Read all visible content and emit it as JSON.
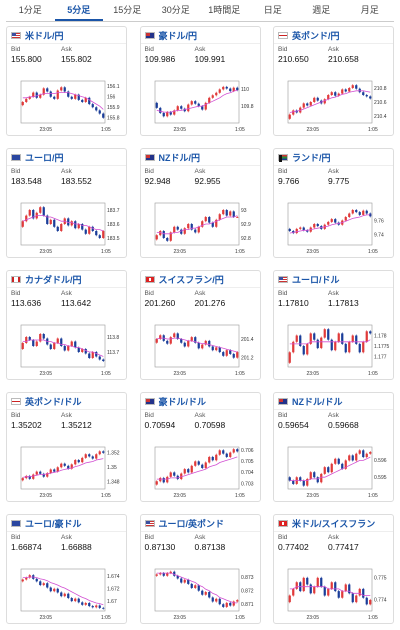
{
  "tabs": [
    {
      "label": "1分足",
      "active": false
    },
    {
      "label": "5分足",
      "active": true
    },
    {
      "label": "15分足",
      "active": false
    },
    {
      "label": "30分足",
      "active": false
    },
    {
      "label": "1時間足",
      "active": false
    },
    {
      "label": "日足",
      "active": false
    },
    {
      "label": "週足",
      "active": false
    },
    {
      "label": "月足",
      "active": false
    }
  ],
  "labels": {
    "bid": "Bid",
    "ask": "Ask"
  },
  "colors": {
    "up": "#e03a3a",
    "down": "#1a3d99",
    "ma": "#d24fd2",
    "axis": "#666"
  },
  "chart_data": [
    {
      "pair": "米ドル/円",
      "flag": "us",
      "bid": "155.800",
      "ask": "155.802",
      "type": "candlestick",
      "x_labels": [
        "23:05",
        "1:05"
      ],
      "y_ticks": [
        "156.1",
        "156",
        "155.9",
        "155.8"
      ],
      "ylim": [
        155.75,
        156.15
      ],
      "close": [
        155.95,
        155.98,
        156.0,
        156.04,
        155.99,
        156.02,
        156.08,
        156.05,
        156.0,
        155.98,
        156.06,
        156.09,
        156.05,
        156.0,
        155.98,
        156.02,
        155.97,
        155.95,
        155.99,
        155.93,
        155.9,
        155.87,
        155.84,
        155.8
      ],
      "ma": [
        155.99,
        155.99,
        156.0,
        156.0,
        156.01,
        156.02,
        156.03,
        156.03,
        156.03,
        156.03,
        156.04,
        156.04,
        156.04,
        156.04,
        156.03,
        156.02,
        156.01,
        156.0,
        155.99,
        155.97,
        155.95,
        155.93,
        155.91,
        155.88
      ]
    },
    {
      "pair": "豪ドル/円",
      "flag": "au",
      "bid": "109.986",
      "ask": "109.991",
      "type": "candlestick",
      "x_labels": [
        "23:05",
        "1:05"
      ],
      "y_ticks": [
        "110",
        "109.8"
      ],
      "ylim": [
        109.6,
        110.1
      ],
      "close": [
        109.78,
        109.72,
        109.68,
        109.73,
        109.7,
        109.75,
        109.8,
        109.77,
        109.74,
        109.82,
        109.86,
        109.83,
        109.8,
        109.76,
        109.84,
        109.9,
        109.93,
        109.96,
        110.0,
        110.03,
        110.01,
        109.98,
        110.02,
        109.99
      ],
      "ma": [
        109.75,
        109.74,
        109.73,
        109.73,
        109.73,
        109.74,
        109.75,
        109.75,
        109.76,
        109.77,
        109.78,
        109.79,
        109.8,
        109.8,
        109.82,
        109.84,
        109.86,
        109.88,
        109.9,
        109.93,
        109.95,
        109.96,
        109.98,
        109.99
      ]
    },
    {
      "pair": "英ポンド/円",
      "flag": "gb",
      "bid": "210.650",
      "ask": "210.658",
      "type": "candlestick",
      "x_labels": [
        "23:05",
        "1:05"
      ],
      "y_ticks": [
        "210.8",
        "210.6",
        "210.4"
      ],
      "ylim": [
        210.3,
        210.9
      ],
      "close": [
        210.42,
        210.48,
        210.45,
        210.52,
        210.58,
        210.55,
        210.6,
        210.66,
        210.62,
        210.58,
        210.64,
        210.7,
        210.74,
        210.69,
        210.72,
        210.78,
        210.75,
        210.8,
        210.84,
        210.79,
        210.74,
        210.7,
        210.68,
        210.65
      ],
      "ma": [
        210.45,
        210.46,
        210.47,
        210.48,
        210.5,
        210.52,
        210.54,
        210.56,
        210.58,
        210.6,
        210.62,
        210.64,
        210.66,
        210.67,
        210.69,
        210.71,
        210.72,
        210.74,
        210.75,
        210.76,
        210.76,
        210.76,
        210.75,
        210.74
      ]
    },
    {
      "pair": "ユーロ/円",
      "flag": "eu",
      "bid": "183.548",
      "ask": "183.552",
      "type": "candlestick",
      "x_labels": [
        "23:05",
        "1:05"
      ],
      "y_ticks": [
        "183.7",
        "183.6",
        "183.5"
      ],
      "ylim": [
        183.45,
        183.75
      ],
      "close": [
        183.62,
        183.66,
        183.7,
        183.64,
        183.68,
        183.72,
        183.66,
        183.6,
        183.63,
        183.58,
        183.55,
        183.6,
        183.64,
        183.59,
        183.62,
        183.57,
        183.6,
        183.56,
        183.53,
        183.58,
        183.55,
        183.52,
        183.5,
        183.55
      ],
      "ma": [
        183.62,
        183.63,
        183.64,
        183.65,
        183.66,
        183.66,
        183.66,
        183.65,
        183.65,
        183.64,
        183.63,
        183.62,
        183.62,
        183.61,
        183.61,
        183.6,
        183.6,
        183.59,
        183.59,
        183.58,
        183.57,
        183.56,
        183.56,
        183.55
      ]
    },
    {
      "pair": "NZドル/円",
      "flag": "nz",
      "bid": "92.948",
      "ask": "92.955",
      "type": "candlestick",
      "x_labels": [
        "23:05",
        "1:05"
      ],
      "y_ticks": [
        "93",
        "92.9",
        "92.8"
      ],
      "ylim": [
        92.75,
        93.05
      ],
      "close": [
        92.82,
        92.85,
        92.8,
        92.78,
        92.84,
        92.88,
        92.86,
        92.83,
        92.87,
        92.9,
        92.86,
        92.84,
        92.88,
        92.92,
        92.95,
        92.91,
        92.88,
        92.93,
        92.97,
        93.0,
        92.96,
        92.99,
        92.95,
        92.95
      ],
      "ma": [
        92.84,
        92.84,
        92.83,
        92.83,
        92.83,
        92.84,
        92.84,
        92.85,
        92.86,
        92.86,
        92.87,
        92.87,
        92.88,
        92.89,
        92.9,
        92.9,
        92.91,
        92.92,
        92.93,
        92.94,
        92.95,
        92.95,
        92.95,
        92.96
      ]
    },
    {
      "pair": "ランド/円",
      "flag": "za",
      "bid": "9.766",
      "ask": "9.775",
      "type": "candlestick",
      "x_labels": [
        "23:05",
        "1:05"
      ],
      "y_ticks": [
        "9.76",
        "9.74"
      ],
      "ylim": [
        9.725,
        9.785
      ],
      "close": [
        9.745,
        9.742,
        9.748,
        9.75,
        9.746,
        9.744,
        9.75,
        9.755,
        9.752,
        9.748,
        9.754,
        9.758,
        9.762,
        9.757,
        9.754,
        9.76,
        9.765,
        9.77,
        9.775,
        9.772,
        9.768,
        9.774,
        9.77,
        9.766
      ],
      "ma": [
        9.742,
        9.743,
        9.744,
        9.745,
        9.746,
        9.746,
        9.747,
        9.748,
        9.749,
        9.75,
        9.751,
        9.752,
        9.754,
        9.755,
        9.756,
        9.757,
        9.759,
        9.761,
        9.763,
        9.764,
        9.765,
        9.767,
        9.768,
        9.768
      ]
    },
    {
      "pair": "カナダドル/円",
      "flag": "ca",
      "bid": "113.636",
      "ask": "113.642",
      "type": "candlestick",
      "x_labels": [
        "23:05",
        "1:05"
      ],
      "y_ticks": [
        "113.8",
        "113.7"
      ],
      "ylim": [
        113.6,
        113.88
      ],
      "close": [
        113.76,
        113.8,
        113.78,
        113.74,
        113.77,
        113.82,
        113.79,
        113.75,
        113.72,
        113.76,
        113.79,
        113.74,
        113.71,
        113.74,
        113.77,
        113.73,
        113.7,
        113.72,
        113.69,
        113.66,
        113.7,
        113.67,
        113.65,
        113.64
      ],
      "ma": [
        113.77,
        113.77,
        113.78,
        113.78,
        113.78,
        113.78,
        113.78,
        113.77,
        113.77,
        113.76,
        113.76,
        113.75,
        113.75,
        113.74,
        113.74,
        113.73,
        113.73,
        113.72,
        113.71,
        113.7,
        113.7,
        113.69,
        113.68,
        113.67
      ]
    },
    {
      "pair": "スイスフラン/円",
      "flag": "ch",
      "bid": "201.260",
      "ask": "201.276",
      "type": "candlestick",
      "x_labels": [
        "23:05",
        "1:05"
      ],
      "y_ticks": [
        "201.4",
        "201.2"
      ],
      "ylim": [
        201.1,
        201.55
      ],
      "close": [
        201.4,
        201.44,
        201.38,
        201.35,
        201.42,
        201.46,
        201.4,
        201.36,
        201.32,
        201.38,
        201.42,
        201.36,
        201.3,
        201.34,
        201.38,
        201.32,
        201.28,
        201.31,
        201.26,
        201.22,
        201.28,
        201.24,
        201.2,
        201.26
      ],
      "ma": [
        201.4,
        201.41,
        201.41,
        201.4,
        201.4,
        201.41,
        201.41,
        201.4,
        201.39,
        201.38,
        201.38,
        201.37,
        201.36,
        201.35,
        201.35,
        201.34,
        201.33,
        201.32,
        201.31,
        201.3,
        201.29,
        201.28,
        201.27,
        201.26
      ]
    },
    {
      "pair": "ユーロ/ドル",
      "flag": "us",
      "bid": "1.17810",
      "ask": "1.17813",
      "type": "candlestick",
      "x_labels": [
        "23:05",
        "1:05"
      ],
      "y_ticks": [
        "1.178",
        "1.1775",
        "1.177"
      ],
      "ylim": [
        1.1765,
        1.1785
      ],
      "close": [
        1.1772,
        1.1777,
        1.178,
        1.1775,
        1.1771,
        1.1776,
        1.1781,
        1.1778,
        1.1774,
        1.1779,
        1.1783,
        1.1778,
        1.1773,
        1.1777,
        1.1781,
        1.1776,
        1.1772,
        1.1777,
        1.178,
        1.1776,
        1.1772,
        1.1777,
        1.1782,
        1.1781
      ],
      "ma": [
        1.1776,
        1.1776,
        1.1776,
        1.1776,
        1.1776,
        1.1776,
        1.1777,
        1.1777,
        1.1777,
        1.1777,
        1.1777,
        1.1777,
        1.1777,
        1.1777,
        1.1777,
        1.1777,
        1.1777,
        1.1777,
        1.1777,
        1.1777,
        1.1777,
        1.1777,
        1.1777,
        1.1778
      ]
    },
    {
      "pair": "英ポンド/ドル",
      "flag": "gb",
      "bid": "1.35202",
      "ask": "1.35212",
      "type": "candlestick",
      "x_labels": [
        "23:05",
        "1:05"
      ],
      "y_ticks": [
        "1.352",
        "1.35",
        "1.348"
      ],
      "ylim": [
        1.347,
        1.3528
      ],
      "close": [
        1.3485,
        1.3488,
        1.3484,
        1.349,
        1.3494,
        1.3491,
        1.3487,
        1.3492,
        1.3497,
        1.3494,
        1.35,
        1.3505,
        1.3502,
        1.3498,
        1.3504,
        1.351,
        1.3507,
        1.3513,
        1.3518,
        1.3515,
        1.3512,
        1.3518,
        1.3522,
        1.352
      ],
      "ma": [
        1.3486,
        1.3487,
        1.3487,
        1.3488,
        1.3489,
        1.349,
        1.349,
        1.3491,
        1.3492,
        1.3493,
        1.3494,
        1.3496,
        1.3497,
        1.3498,
        1.3499,
        1.3501,
        1.3502,
        1.3504,
        1.3506,
        1.3507,
        1.3508,
        1.351,
        1.3511,
        1.3512
      ]
    },
    {
      "pair": "豪ドル/ドル",
      "flag": "au",
      "bid": "0.70594",
      "ask": "0.70598",
      "type": "candlestick",
      "x_labels": [
        "23:05",
        "1:05"
      ],
      "y_ticks": [
        "0.706",
        "0.705",
        "0.704",
        "0.703"
      ],
      "ylim": [
        0.7025,
        0.7063
      ],
      "close": [
        0.7032,
        0.7035,
        0.7031,
        0.7036,
        0.704,
        0.7037,
        0.7034,
        0.7039,
        0.7043,
        0.704,
        0.7046,
        0.705,
        0.7047,
        0.7044,
        0.7049,
        0.7054,
        0.7051,
        0.7056,
        0.706,
        0.7057,
        0.7054,
        0.7058,
        0.7061,
        0.7059
      ],
      "ma": [
        0.7034,
        0.7034,
        0.7034,
        0.7034,
        0.7035,
        0.7035,
        0.7035,
        0.7036,
        0.7037,
        0.7038,
        0.7039,
        0.704,
        0.7041,
        0.7042,
        0.7043,
        0.7045,
        0.7046,
        0.7047,
        0.7049,
        0.705,
        0.7051,
        0.7052,
        0.7053,
        0.7054
      ]
    },
    {
      "pair": "NZドル/ドル",
      "flag": "nz",
      "bid": "0.59654",
      "ask": "0.59668",
      "type": "candlestick",
      "x_labels": [
        "23:05",
        "1:05"
      ],
      "y_ticks": [
        "0.596",
        "0.595"
      ],
      "ylim": [
        0.5943,
        0.5968
      ],
      "close": [
        0.5948,
        0.5946,
        0.595,
        0.5948,
        0.5945,
        0.5949,
        0.5953,
        0.595,
        0.5947,
        0.5952,
        0.5956,
        0.5953,
        0.5958,
        0.5961,
        0.5958,
        0.5955,
        0.596,
        0.5963,
        0.596,
        0.5964,
        0.5966,
        0.5962,
        0.5964,
        0.5965
      ],
      "ma": [
        0.5948,
        0.5948,
        0.5948,
        0.5948,
        0.5948,
        0.5948,
        0.5949,
        0.5949,
        0.5949,
        0.595,
        0.595,
        0.5951,
        0.5952,
        0.5953,
        0.5954,
        0.5955,
        0.5956,
        0.5957,
        0.5958,
        0.5959,
        0.596,
        0.596,
        0.5961,
        0.5962
      ]
    },
    {
      "pair": "ユーロ/豪ドル",
      "flag": "eu",
      "bid": "1.66874",
      "ask": "1.66888",
      "type": "candlestick",
      "x_labels": [
        "23:05",
        "1:05"
      ],
      "y_ticks": [
        "1.674",
        "1.672",
        "1.67"
      ],
      "ylim": [
        1.6684,
        1.6752
      ],
      "close": [
        1.6735,
        1.6738,
        1.6742,
        1.6736,
        1.6732,
        1.6726,
        1.6729,
        1.6722,
        1.6716,
        1.672,
        1.6714,
        1.6708,
        1.6712,
        1.6705,
        1.67,
        1.6704,
        1.6698,
        1.6694,
        1.6697,
        1.6692,
        1.669,
        1.6693,
        1.6689,
        1.6688
      ],
      "ma": [
        1.6738,
        1.6738,
        1.6739,
        1.6739,
        1.6738,
        1.6736,
        1.6735,
        1.6733,
        1.673,
        1.6728,
        1.6726,
        1.6723,
        1.6721,
        1.6718,
        1.6715,
        1.6712,
        1.6709,
        1.6706,
        1.6704,
        1.6701,
        1.6699,
        1.6697,
        1.6696,
        1.6694
      ]
    },
    {
      "pair": "ユーロ/英ポンド",
      "flag": "us",
      "bid": "0.87130",
      "ask": "0.87138",
      "type": "candlestick",
      "x_labels": [
        "23:05",
        "1:05"
      ],
      "y_ticks": [
        "0.873",
        "0.872",
        "0.871"
      ],
      "ylim": [
        0.8705,
        0.8736
      ],
      "close": [
        0.8732,
        0.8733,
        0.8731,
        0.8733,
        0.8734,
        0.8731,
        0.8729,
        0.8726,
        0.8728,
        0.8725,
        0.8722,
        0.8724,
        0.872,
        0.8717,
        0.8719,
        0.8715,
        0.8712,
        0.8714,
        0.871,
        0.8708,
        0.8711,
        0.8709,
        0.8712,
        0.8713
      ],
      "ma": [
        0.8733,
        0.8733,
        0.8733,
        0.8733,
        0.8733,
        0.8732,
        0.8731,
        0.873,
        0.8729,
        0.8728,
        0.8727,
        0.8726,
        0.8724,
        0.8723,
        0.8721,
        0.872,
        0.8718,
        0.8717,
        0.8715,
        0.8714,
        0.8713,
        0.8712,
        0.8711,
        0.8711
      ]
    },
    {
      "pair": "米ドル/スイスフラン",
      "flag": "ch",
      "bid": "0.77402",
      "ask": "0.77417",
      "type": "candlestick",
      "x_labels": [
        "23:05",
        "1:05"
      ],
      "y_ticks": [
        "0.775",
        "0.774"
      ],
      "ylim": [
        0.7735,
        0.7754
      ],
      "close": [
        0.7742,
        0.7745,
        0.7748,
        0.7744,
        0.775,
        0.7747,
        0.7743,
        0.7746,
        0.775,
        0.7746,
        0.7742,
        0.7745,
        0.7748,
        0.7744,
        0.7741,
        0.7744,
        0.7747,
        0.7743,
        0.7739,
        0.7742,
        0.7745,
        0.7741,
        0.7738,
        0.774
      ],
      "ma": [
        0.7745,
        0.7745,
        0.7746,
        0.7746,
        0.7746,
        0.7746,
        0.7746,
        0.7746,
        0.7746,
        0.7746,
        0.7746,
        0.7745,
        0.7745,
        0.7745,
        0.7745,
        0.7744,
        0.7744,
        0.7744,
        0.7743,
        0.7743,
        0.7743,
        0.7742,
        0.7742,
        0.7742
      ]
    }
  ]
}
